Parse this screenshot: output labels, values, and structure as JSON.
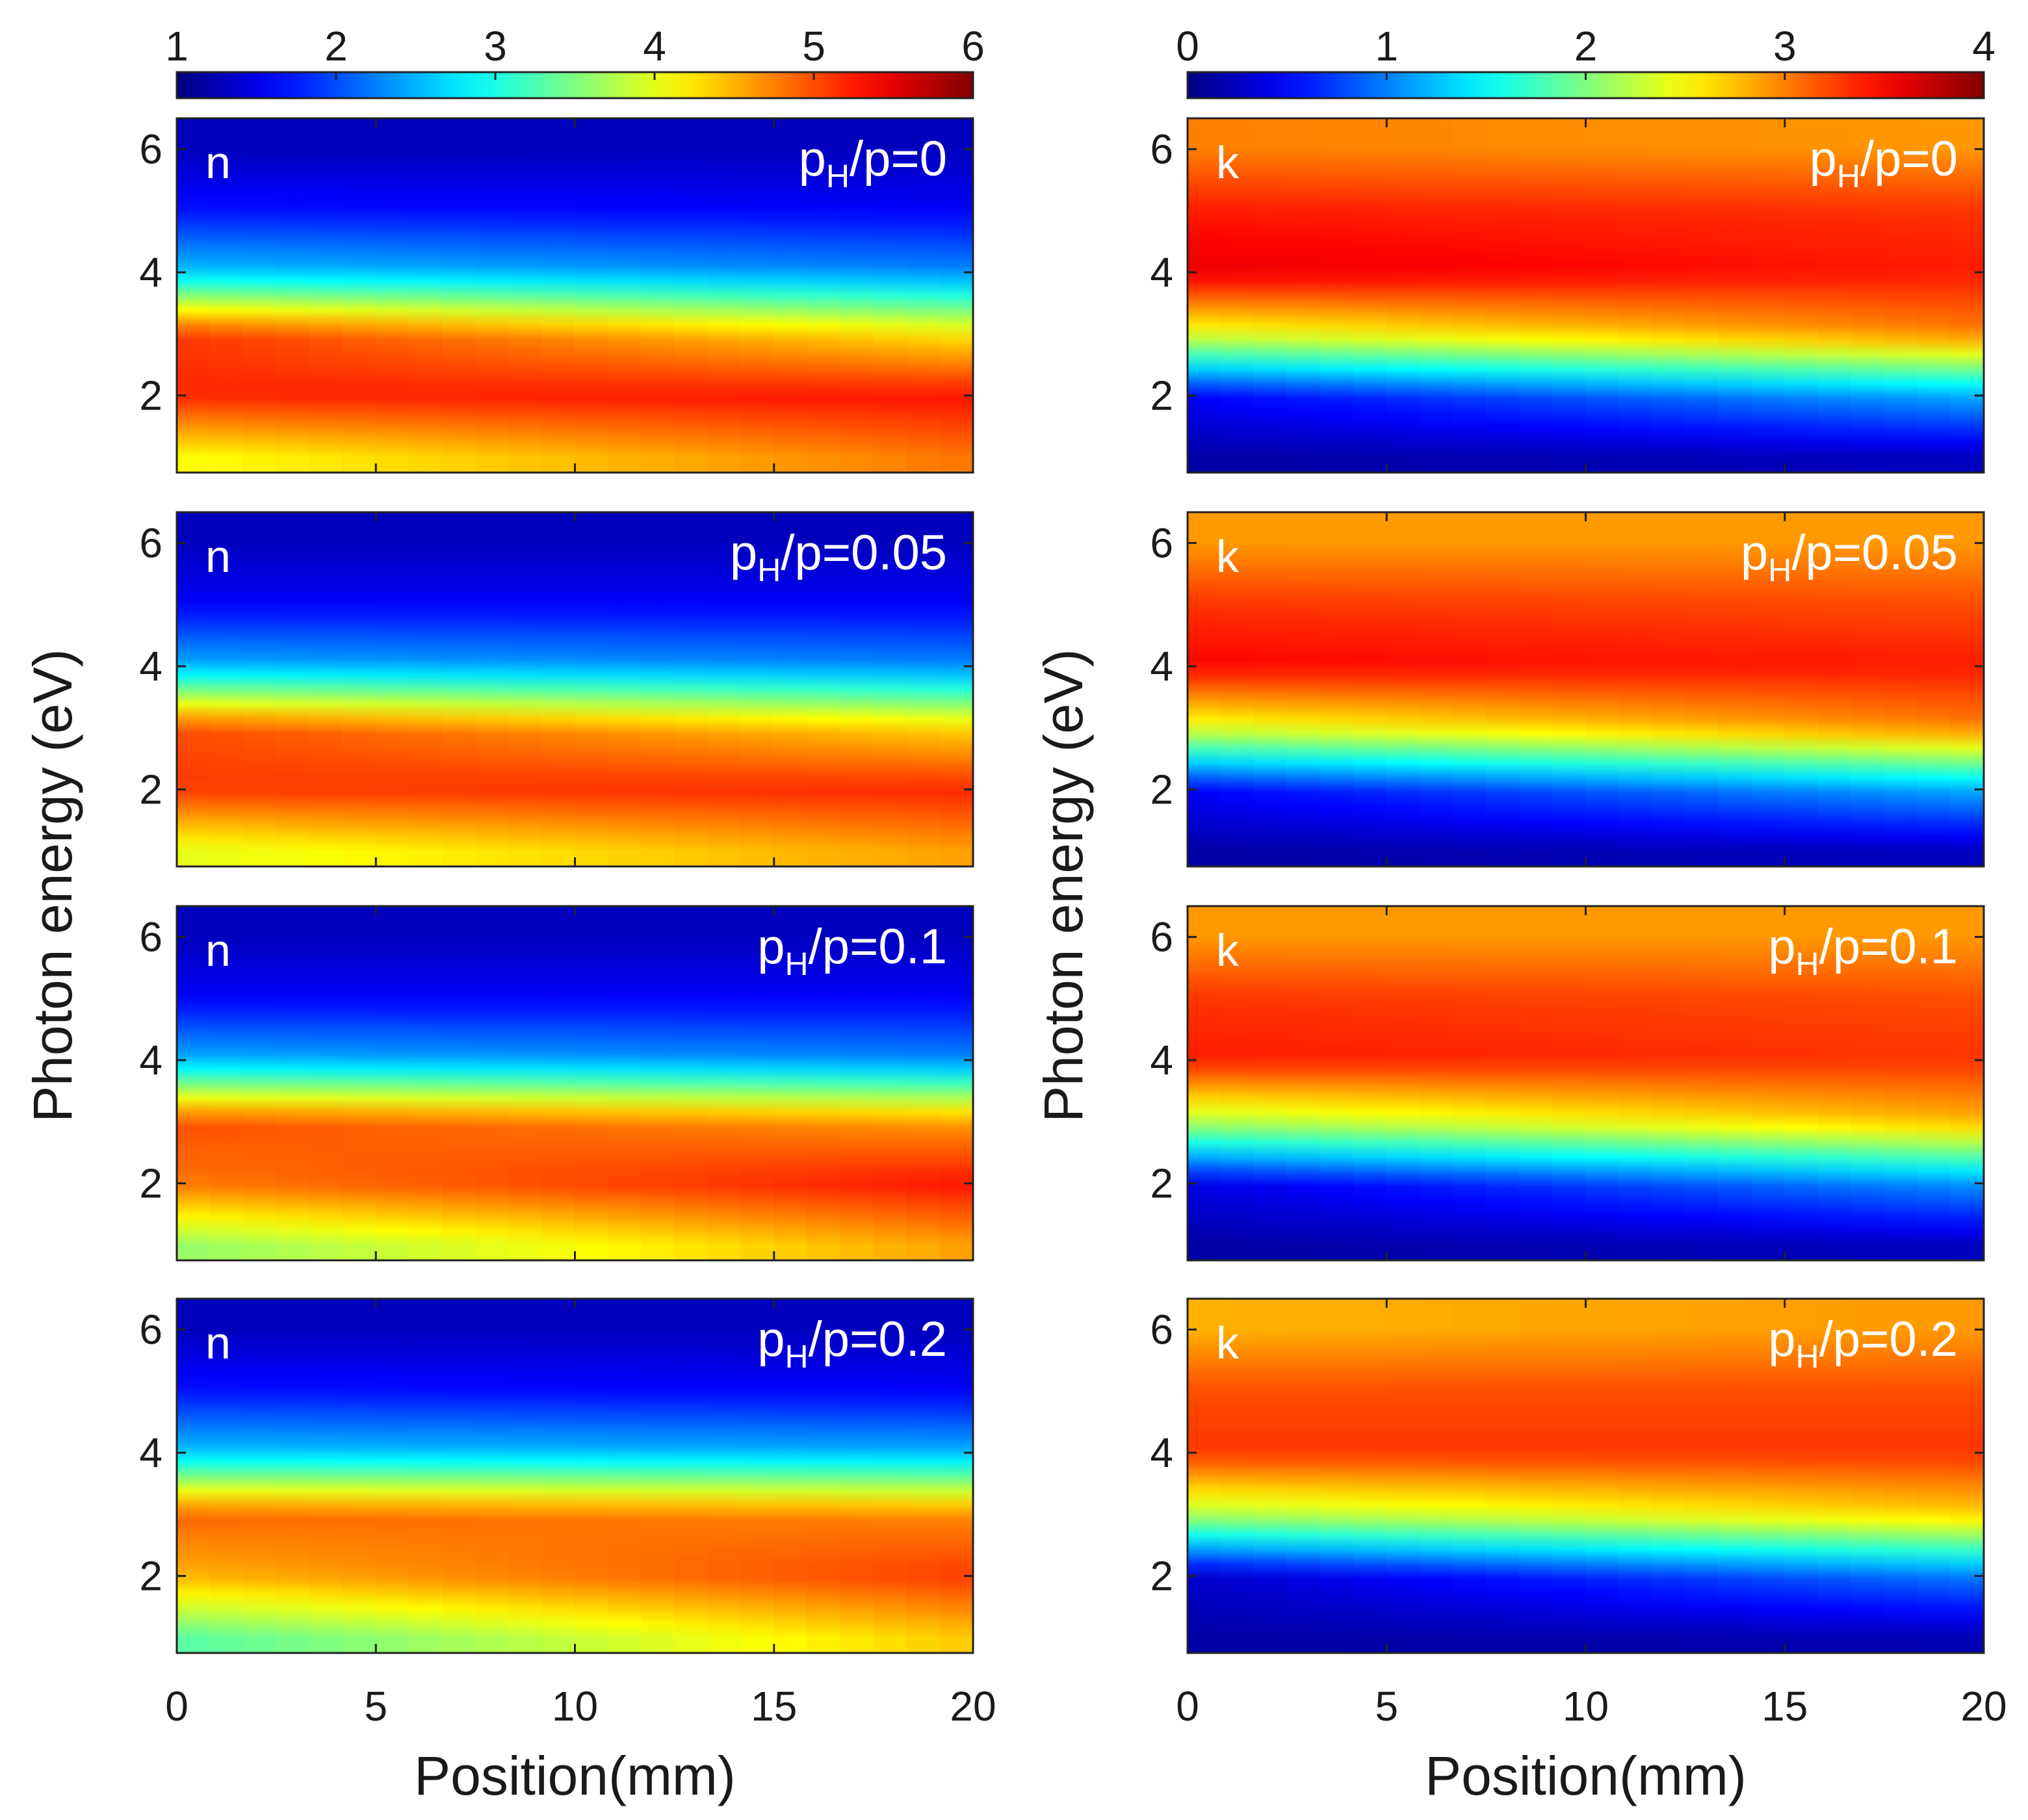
{
  "chart_data": [
    {
      "type": "heatmap",
      "quantity": "n",
      "xlabel": "Position(mm)",
      "ylabel": "Photon energy (eV)",
      "xlim": [
        0,
        20
      ],
      "ylim": [
        0.75,
        6.5
      ],
      "xticks": [
        "0",
        "5",
        "10",
        "15",
        "20"
      ],
      "yticks": [
        "2",
        "4",
        "6"
      ],
      "colorbar": {
        "range": [
          1,
          6
        ],
        "ticks": [
          "1",
          "2",
          "3",
          "4",
          "5",
          "6"
        ],
        "colormap": "jet"
      },
      "ratio_label": {
        "prefix": "p",
        "subscript": "H",
        "suffix": "/p="
      },
      "panels": [
        {
          "label": "n",
          "ratio": "0",
          "values_at_x0": {
            "1.0": 4.1,
            "2.0": 5.2,
            "3.0": 5.1,
            "4.0": 2.6,
            "5.0": 1.7,
            "6.0": 1.3
          },
          "values_at_x20": {
            "1.0": 4.8,
            "2.0": 5.3,
            "3.0": 4.2,
            "4.0": 2.3,
            "5.0": 1.6,
            "6.0": 1.3
          }
        },
        {
          "label": "n",
          "ratio": "0.05",
          "values_at_x0": {
            "1.0": 4.0,
            "2.0": 5.1,
            "3.0": 5.0,
            "4.0": 2.5,
            "5.0": 1.6,
            "6.0": 1.3
          },
          "values_at_x20": {
            "1.0": 4.6,
            "2.0": 5.2,
            "3.0": 4.3,
            "4.0": 2.3,
            "5.0": 1.6,
            "6.0": 1.3
          }
        },
        {
          "label": "n",
          "ratio": "0.1",
          "values_at_x0": {
            "1.0": 3.6,
            "2.0": 4.8,
            "3.0": 5.0,
            "4.0": 2.5,
            "5.0": 1.6,
            "6.0": 1.3
          },
          "values_at_x20": {
            "1.0": 4.6,
            "2.0": 5.3,
            "3.0": 4.6,
            "4.0": 2.3,
            "5.0": 1.6,
            "6.0": 1.3
          }
        },
        {
          "label": "n",
          "ratio": "0.2",
          "values_at_x0": {
            "1.0": 3.3,
            "2.0": 4.5,
            "3.0": 4.9,
            "4.0": 2.6,
            "5.0": 1.7,
            "6.0": 1.3
          },
          "values_at_x20": {
            "1.0": 4.4,
            "2.0": 5.1,
            "3.0": 4.7,
            "4.0": 2.5,
            "5.0": 1.6,
            "6.0": 1.3
          }
        }
      ]
    },
    {
      "type": "heatmap",
      "quantity": "k",
      "xlabel": "Position(mm)",
      "ylabel": "Photon energy (eV)",
      "xlim": [
        0,
        20
      ],
      "ylim": [
        0.75,
        6.5
      ],
      "xticks": [
        "0",
        "5",
        "10",
        "15",
        "20"
      ],
      "yticks": [
        "2",
        "4",
        "6"
      ],
      "colorbar": {
        "range": [
          0,
          4
        ],
        "ticks": [
          "0",
          "1",
          "2",
          "3",
          "4"
        ],
        "colormap": "jet"
      },
      "ratio_label": {
        "prefix": "p",
        "subscript": "H",
        "suffix": "/p="
      },
      "panels": [
        {
          "label": "k",
          "ratio": "0",
          "values_at_x0": {
            "1.0": 0.15,
            "2.0": 0.5,
            "3.0": 2.4,
            "4.0": 3.6,
            "5.0": 3.4,
            "6.0": 3.0
          },
          "values_at_x20": {
            "1.0": 0.25,
            "2.0": 1.2,
            "3.0": 3.0,
            "4.0": 3.4,
            "5.0": 3.3,
            "6.0": 2.9
          }
        },
        {
          "label": "k",
          "ratio": "0.05",
          "values_at_x0": {
            "1.0": 0.15,
            "2.0": 0.5,
            "3.0": 2.4,
            "4.0": 3.5,
            "5.0": 3.3,
            "6.0": 2.9
          },
          "values_at_x20": {
            "1.0": 0.25,
            "2.0": 1.2,
            "3.0": 3.0,
            "4.0": 3.4,
            "5.0": 3.2,
            "6.0": 2.9
          }
        },
        {
          "label": "k",
          "ratio": "0.1",
          "values_at_x0": {
            "1.0": 0.15,
            "2.0": 0.4,
            "3.0": 2.2,
            "4.0": 3.4,
            "5.0": 3.3,
            "6.0": 2.9
          },
          "values_at_x20": {
            "1.0": 0.25,
            "2.0": 1.1,
            "3.0": 2.8,
            "4.0": 3.3,
            "5.0": 3.2,
            "6.0": 2.9
          }
        },
        {
          "label": "k",
          "ratio": "0.2",
          "values_at_x0": {
            "1.0": 0.15,
            "2.0": 0.3,
            "3.0": 2.2,
            "4.0": 3.3,
            "5.0": 3.2,
            "6.0": 2.8
          },
          "values_at_x20": {
            "1.0": 0.2,
            "2.0": 1.0,
            "3.0": 2.7,
            "4.0": 3.3,
            "5.0": 3.2,
            "6.0": 2.9
          }
        }
      ]
    }
  ]
}
